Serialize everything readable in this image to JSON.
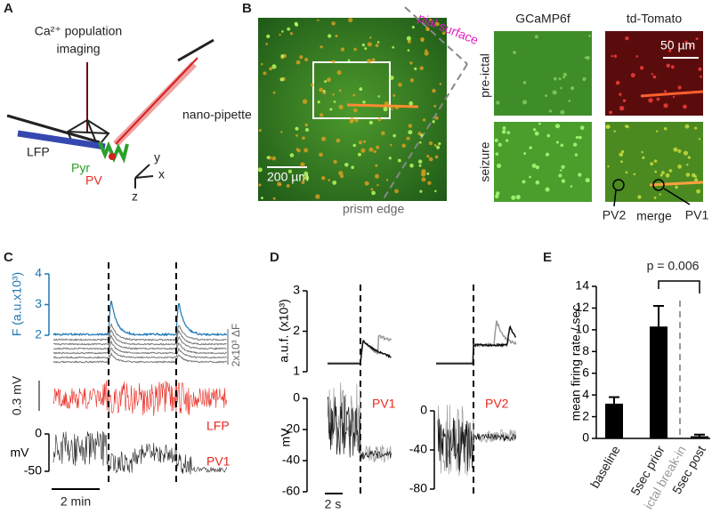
{
  "panels": {
    "a": {
      "label": "A",
      "imaging": [
        "Ca²⁺ population",
        "imaging"
      ],
      "pipette": "nano-pipette",
      "lfp": "LFP",
      "pyr": "Pyr",
      "pv": "PV",
      "axes": [
        "y",
        "x",
        "z"
      ]
    },
    "b": {
      "label": "B",
      "pial": "pial surface",
      "scale_large": "200 µm",
      "prism": "prism edge",
      "columns": [
        "GCaMP6f",
        "td-Tomato"
      ],
      "rows": [
        "pre-ictal",
        "seizure"
      ],
      "scale_small": "50 µm",
      "cells": [
        "PV2",
        "merge",
        "PV1"
      ]
    },
    "c": {
      "label": "C",
      "scale_df": "2x10³ ΔF",
      "scale_lfp": "0.3 mV",
      "lfp": "LFP",
      "cell": "PV1",
      "time": "2 min"
    },
    "d": {
      "label": "D",
      "time": "2 s"
    },
    "e": {
      "label": "E"
    }
  },
  "chart_data": [
    {
      "type": "line",
      "ylabel": "F (a.u.x10³)",
      "ylim": [
        2,
        4
      ],
      "yticks": [
        2,
        3,
        4
      ],
      "color": "#1f77b4"
    },
    {
      "type": "line",
      "ylabel": "mV",
      "ylim": [
        -50,
        0
      ],
      "yticks": [
        0,
        -50
      ],
      "color": "#000000"
    },
    {
      "type": "line",
      "ylabel": "a.u.f. (x10³)",
      "ylim": [
        1,
        3
      ],
      "yticks": [
        1,
        2,
        3
      ],
      "color": "#000000"
    },
    {
      "type": "line",
      "ylabel": "mV",
      "ylim": [
        -60,
        0
      ],
      "yticks": [
        0,
        -20,
        -40,
        -60
      ],
      "color": "#000000",
      "annotation": "PV1"
    },
    {
      "type": "line",
      "ylim": [
        -80,
        0
      ],
      "yticks": [
        0,
        -40,
        -80
      ],
      "color": "#000000",
      "annotation": "PV2"
    },
    {
      "type": "bar",
      "ylabel": "mean firing rate / sec",
      "categories": [
        "baseline",
        "5sec prior",
        "5sec post"
      ],
      "values": [
        3.2,
        10.3,
        0.2
      ],
      "errors": [
        0.6,
        1.9,
        0.15
      ],
      "color": "#000000",
      "ylim": [
        0,
        14
      ],
      "yticks": [
        0,
        2,
        4,
        6,
        8,
        10,
        12,
        14
      ],
      "annotations": {
        "p_value": "p = 0.006",
        "marker": "ictal break-in"
      }
    }
  ]
}
